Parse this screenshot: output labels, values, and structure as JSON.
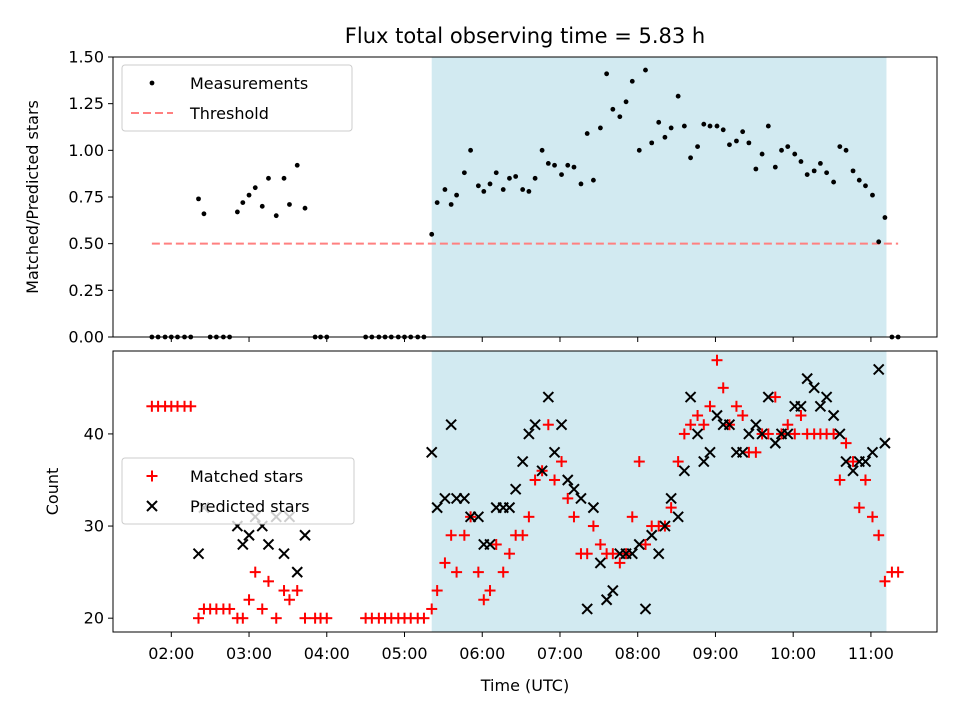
{
  "chart_data": [
    {
      "type": "scatter",
      "title": "Flux total observing time = 5.83 h",
      "ylabel": "Matched/Predicted stars",
      "ylim": [
        0,
        1.5
      ],
      "yticks": [
        "0.00",
        "0.25",
        "0.50",
        "0.75",
        "1.00",
        "1.25",
        "1.50"
      ],
      "yticks_values": [
        0,
        0.25,
        0.5,
        0.75,
        1.0,
        1.25,
        1.5
      ],
      "xlim": [
        1.25,
        11.85
      ],
      "shaded_span": [
        5.35,
        11.2
      ],
      "shade_color": "#add8e6",
      "legend": [
        "Measurements",
        "Threshold"
      ],
      "legend_placement": "top-left",
      "threshold": {
        "name": "Threshold",
        "value": 0.5,
        "x": [
          1.75,
          11.35
        ],
        "color": "#ff8080"
      },
      "series": [
        {
          "name": "Measurements",
          "color": "#000000",
          "x": [
            1.75,
            1.83,
            1.92,
            2.0,
            2.08,
            2.17,
            2.25,
            2.35,
            2.42,
            2.5,
            2.58,
            2.67,
            2.75,
            2.85,
            2.92,
            3.0,
            3.08,
            3.17,
            3.25,
            3.35,
            3.45,
            3.52,
            3.62,
            3.72,
            3.85,
            3.92,
            4.0,
            4.5,
            4.58,
            4.67,
            4.75,
            4.83,
            4.92,
            5.0,
            5.08,
            5.17,
            5.25,
            5.35,
            5.42,
            5.52,
            5.6,
            5.67,
            5.77,
            5.85,
            5.95,
            6.02,
            6.1,
            6.18,
            6.27,
            6.35,
            6.43,
            6.52,
            6.6,
            6.68,
            6.77,
            6.85,
            6.93,
            7.02,
            7.1,
            7.18,
            7.27,
            7.35,
            7.43,
            7.52,
            7.6,
            7.68,
            7.77,
            7.85,
            7.93,
            8.02,
            8.1,
            8.18,
            8.27,
            8.35,
            8.43,
            8.52,
            8.6,
            8.68,
            8.77,
            8.85,
            8.93,
            9.02,
            9.1,
            9.18,
            9.27,
            9.35,
            9.43,
            9.52,
            9.6,
            9.68,
            9.77,
            9.85,
            9.93,
            10.02,
            10.1,
            10.18,
            10.27,
            10.35,
            10.43,
            10.52,
            10.6,
            10.68,
            10.77,
            10.85,
            10.93,
            11.02,
            11.1,
            11.18,
            11.27,
            11.35
          ],
          "y": [
            0,
            0,
            0,
            0,
            0,
            0,
            0,
            0.74,
            0.66,
            0,
            0,
            0,
            0,
            0.67,
            0.72,
            0.76,
            0.8,
            0.7,
            0.85,
            0.65,
            0.85,
            0.71,
            0.92,
            0.69,
            0,
            0,
            0,
            0,
            0,
            0,
            0,
            0,
            0,
            0,
            0,
            0,
            0,
            0.55,
            0.72,
            0.79,
            0.71,
            0.76,
            0.88,
            1.0,
            0.81,
            0.78,
            0.82,
            0.88,
            0.79,
            0.85,
            0.86,
            0.79,
            0.78,
            0.85,
            1.0,
            0.93,
            0.92,
            0.87,
            0.92,
            0.91,
            0.82,
            1.09,
            0.84,
            1.12,
            1.41,
            1.22,
            1.18,
            1.26,
            1.37,
            1.0,
            1.43,
            1.04,
            1.15,
            1.07,
            1.12,
            1.29,
            1.13,
            0.96,
            1.02,
            1.14,
            1.13,
            1.13,
            1.11,
            1.03,
            1.05,
            1.1,
            1.04,
            0.9,
            0.98,
            1.13,
            0.91,
            1.0,
            1.02,
            0.98,
            0.94,
            0.87,
            0.89,
            0.93,
            0.88,
            0.83,
            1.02,
            1.0,
            0.89,
            0.84,
            0.81,
            0.76,
            0.51,
            0.64,
            0,
            0
          ]
        }
      ]
    },
    {
      "type": "scatter",
      "xlabel": "Time (UTC)",
      "ylabel": "Count",
      "ylim": [
        18.5,
        49
      ],
      "yticks": [
        "20",
        "30",
        "40"
      ],
      "yticks_values": [
        20,
        30,
        40
      ],
      "xlim": [
        1.25,
        11.85
      ],
      "xticks": [
        "02:00",
        "03:00",
        "04:00",
        "05:00",
        "06:00",
        "07:00",
        "08:00",
        "09:00",
        "10:00",
        "11:00"
      ],
      "xticks_values": [
        2,
        3,
        4,
        5,
        6,
        7,
        8,
        9,
        10,
        11
      ],
      "shaded_span": [
        5.35,
        11.2
      ],
      "shade_color": "#add8e6",
      "legend": [
        "Matched stars",
        "Predicted stars"
      ],
      "legend_placement": "center-left",
      "series": [
        {
          "name": "Matched stars",
          "marker": "+",
          "color": "#ff0000",
          "x": [
            1.75,
            1.83,
            1.92,
            2.0,
            2.08,
            2.17,
            2.25,
            2.35,
            2.42,
            2.5,
            2.58,
            2.67,
            2.75,
            2.85,
            2.92,
            3.0,
            3.08,
            3.17,
            3.25,
            3.35,
            3.45,
            3.52,
            3.62,
            3.72,
            3.85,
            3.92,
            4.0,
            4.5,
            4.58,
            4.67,
            4.75,
            4.83,
            4.92,
            5.0,
            5.08,
            5.17,
            5.25,
            5.35,
            5.42,
            5.52,
            5.6,
            5.67,
            5.77,
            5.85,
            5.95,
            6.02,
            6.1,
            6.18,
            6.27,
            6.35,
            6.43,
            6.52,
            6.6,
            6.68,
            6.77,
            6.85,
            6.93,
            7.02,
            7.1,
            7.18,
            7.27,
            7.35,
            7.43,
            7.52,
            7.6,
            7.68,
            7.77,
            7.85,
            7.93,
            8.02,
            8.1,
            8.18,
            8.27,
            8.35,
            8.43,
            8.52,
            8.6,
            8.68,
            8.77,
            8.85,
            8.93,
            9.02,
            9.1,
            9.18,
            9.27,
            9.35,
            9.43,
            9.52,
            9.6,
            9.68,
            9.77,
            9.85,
            9.93,
            10.02,
            10.1,
            10.18,
            10.27,
            10.35,
            10.43,
            10.52,
            10.6,
            10.68,
            10.77,
            10.85,
            10.93,
            11.02,
            11.1,
            11.18,
            11.27,
            11.35
          ],
          "y": [
            43,
            43,
            43,
            43,
            43,
            43,
            43,
            20,
            21,
            21,
            21,
            21,
            21,
            20,
            20,
            22,
            25,
            21,
            24,
            20,
            23,
            22,
            23,
            20,
            20,
            20,
            20,
            20,
            20,
            20,
            20,
            20,
            20,
            20,
            20,
            20,
            20,
            21,
            23,
            26,
            29,
            25,
            29,
            31,
            25,
            22,
            23,
            28,
            25,
            27,
            29,
            29,
            31,
            35,
            36,
            41,
            35,
            37,
            33,
            31,
            27,
            27,
            30,
            28,
            27,
            27,
            26,
            27,
            31,
            37,
            28,
            30,
            30,
            30,
            32,
            37,
            40,
            41,
            42,
            41,
            43,
            48,
            45,
            41,
            43,
            42,
            38,
            38,
            40,
            40,
            44,
            40,
            41,
            40,
            42,
            40,
            40,
            40,
            40,
            40,
            35,
            39,
            37,
            32,
            35,
            31,
            29,
            24,
            25,
            25
          ]
        },
        {
          "name": "Predicted stars",
          "marker": "x",
          "color": "#000000",
          "x": [
            2.35,
            2.42,
            2.85,
            2.92,
            3.0,
            3.08,
            3.17,
            3.25,
            3.35,
            3.45,
            3.52,
            3.62,
            3.72,
            5.35,
            5.42,
            5.52,
            5.6,
            5.67,
            5.77,
            5.85,
            5.95,
            6.02,
            6.1,
            6.18,
            6.27,
            6.35,
            6.43,
            6.52,
            6.6,
            6.68,
            6.77,
            6.85,
            6.93,
            7.02,
            7.1,
            7.18,
            7.27,
            7.35,
            7.43,
            7.52,
            7.6,
            7.68,
            7.77,
            7.85,
            7.93,
            8.02,
            8.1,
            8.18,
            8.27,
            8.35,
            8.43,
            8.52,
            8.6,
            8.68,
            8.77,
            8.85,
            8.93,
            9.02,
            9.1,
            9.18,
            9.27,
            9.35,
            9.43,
            9.52,
            9.6,
            9.68,
            9.77,
            9.85,
            9.93,
            10.02,
            10.1,
            10.18,
            10.27,
            10.35,
            10.43,
            10.52,
            10.6,
            10.68,
            10.77,
            10.85,
            10.93,
            11.02,
            11.1,
            11.18
          ],
          "y": [
            27,
            32,
            30,
            28,
            29,
            31,
            30,
            28,
            31,
            27,
            31,
            25,
            29,
            38,
            32,
            33,
            41,
            33,
            33,
            31,
            31,
            28,
            28,
            32,
            32,
            32,
            34,
            37,
            40,
            41,
            36,
            44,
            38,
            41,
            35,
            34,
            33,
            21,
            32,
            26,
            22,
            23,
            27,
            27,
            27,
            28,
            21,
            29,
            27,
            30,
            33,
            31,
            36,
            44,
            40,
            37,
            38,
            42,
            41,
            41,
            38,
            38,
            40,
            41,
            40,
            44,
            39,
            40,
            40,
            43,
            43,
            46,
            45,
            43,
            44,
            42,
            40,
            37,
            36,
            37,
            37,
            38,
            47,
            39
          ]
        }
      ]
    }
  ]
}
